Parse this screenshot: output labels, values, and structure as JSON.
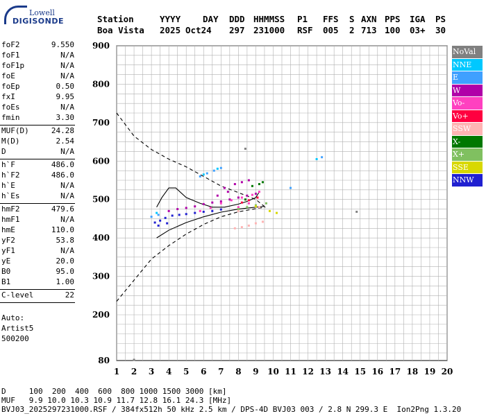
{
  "logo": {
    "line1": "Lowell",
    "line2": "DIGISONDE"
  },
  "header": {
    "labels": [
      "Station",
      "YYYY",
      "DAY",
      "DDD",
      "HHMMSS",
      "P1",
      "FFS",
      "S",
      "AXN",
      "PPS",
      "IGA",
      "PS"
    ],
    "values": [
      "Boa Vista",
      "2025",
      "Oct24",
      "297",
      "231000",
      "RSF",
      "005",
      "2",
      "713",
      "100",
      "03+",
      "30"
    ]
  },
  "params_groups": [
    [
      [
        "foF2",
        "9.550"
      ],
      [
        "foF1",
        "N/A"
      ],
      [
        "foF1p",
        "N/A"
      ],
      [
        "foE",
        "N/A"
      ],
      [
        "foEp",
        "0.50"
      ],
      [
        "fxI",
        "9.95"
      ],
      [
        "foEs",
        "N/A"
      ],
      [
        "fmin",
        "3.30"
      ]
    ],
    [
      [
        "MUF(D)",
        "24.28"
      ],
      [
        "M(D)",
        "2.54"
      ],
      [
        "D",
        "N/A"
      ]
    ],
    [
      [
        "h`F",
        "486.0"
      ],
      [
        "h`F2",
        "486.0"
      ],
      [
        "h`E",
        "N/A"
      ],
      [
        "h`Es",
        "N/A"
      ]
    ],
    [
      [
        "hmF2",
        "479.6"
      ],
      [
        "hmF1",
        "N/A"
      ],
      [
        "hmE",
        "110.0"
      ],
      [
        "yF2",
        "53.8"
      ],
      [
        "yF1",
        "N/A"
      ],
      [
        "yE",
        "20.0"
      ],
      [
        "B0",
        "95.0"
      ],
      [
        "B1",
        "1.00"
      ]
    ],
    [
      [
        "C-level",
        "22"
      ]
    ]
  ],
  "auto_info": [
    "Auto:",
    "Artist5",
    "500200"
  ],
  "legend": [
    {
      "label": "NoVal",
      "color": "#808080"
    },
    {
      "label": "NNE",
      "color": "#00c8ff"
    },
    {
      "label": "E",
      "color": "#3fa0ff"
    },
    {
      "label": "W",
      "color": "#b000a8"
    },
    {
      "label": "Vo-",
      "color": "#ff40c0"
    },
    {
      "label": "Vo+",
      "color": "#ff0040"
    },
    {
      "label": "SSW",
      "color": "#ffb4b4"
    },
    {
      "label": "X-",
      "color": "#007800"
    },
    {
      "label": "X+",
      "color": "#80c060"
    },
    {
      "label": "SSE",
      "color": "#d8d800"
    },
    {
      "label": "NNW",
      "color": "#2020d0"
    }
  ],
  "footer": {
    "d_row": "D     100  200  400  600  800 1000 1500 3000 [km]",
    "muf_row": "MUF   9.9 10.0 10.3 10.9 11.7 12.8 16.1 24.3 [MHz]",
    "file_row": "BVJ03_2025297231000.RSF / 384fx512h 50 kHz 2.5 km / DPS-4D BVJ03 003 / 2.8 N 299.3 E  Ion2Png 1.3.20"
  },
  "chart_data": {
    "type": "scatter",
    "title": "",
    "xlabel": "",
    "ylabel": "",
    "xlim": [
      1,
      20
    ],
    "ylim": [
      80,
      900
    ],
    "xticks": [
      1,
      2,
      3,
      4,
      5,
      6,
      7,
      8,
      9,
      10,
      11,
      12,
      13,
      14,
      15,
      16,
      17,
      18,
      19,
      20
    ],
    "yticks": [
      80,
      200,
      300,
      400,
      500,
      600,
      700,
      800,
      900
    ],
    "grid": true,
    "series": [
      {
        "color": "#2020d0",
        "points": [
          [
            3.2,
            440
          ],
          [
            3.5,
            445
          ],
          [
            3.8,
            452
          ],
          [
            4.2,
            458
          ],
          [
            4.6,
            460
          ],
          [
            5.0,
            462
          ],
          [
            5.5,
            465
          ],
          [
            6.0,
            468
          ],
          [
            6.5,
            470
          ],
          [
            7.0,
            474
          ],
          [
            3.4,
            432
          ],
          [
            3.9,
            438
          ]
        ]
      },
      {
        "color": "#b000a8",
        "points": [
          [
            4.0,
            470
          ],
          [
            4.5,
            475
          ],
          [
            5.0,
            478
          ],
          [
            5.5,
            482
          ],
          [
            6.0,
            488
          ],
          [
            6.5,
            492
          ],
          [
            7.0,
            495
          ],
          [
            7.5,
            500
          ],
          [
            8.0,
            505
          ],
          [
            8.5,
            510
          ],
          [
            9.0,
            515
          ],
          [
            7.2,
            530
          ],
          [
            7.8,
            540
          ],
          [
            8.2,
            545
          ],
          [
            8.6,
            550
          ],
          [
            6.8,
            510
          ],
          [
            7.4,
            520
          ]
        ]
      },
      {
        "color": "#ff40c0",
        "points": [
          [
            5.8,
            470
          ],
          [
            6.4,
            478
          ],
          [
            7.0,
            490
          ],
          [
            7.6,
            498
          ],
          [
            8.2,
            505
          ],
          [
            8.8,
            512
          ],
          [
            9.2,
            520
          ],
          [
            8.0,
            480
          ],
          [
            8.6,
            490
          ]
        ]
      },
      {
        "color": "#3fa0ff",
        "points": [
          [
            3.0,
            455
          ],
          [
            3.4,
            460
          ],
          [
            5.8,
            560
          ],
          [
            6.2,
            568
          ],
          [
            6.6,
            575
          ],
          [
            7.0,
            582
          ],
          [
            11.0,
            530
          ],
          [
            12.8,
            610
          ]
        ]
      },
      {
        "color": "#00c8ff",
        "points": [
          [
            3.3,
            465
          ],
          [
            6.0,
            565
          ],
          [
            6.8,
            580
          ],
          [
            12.5,
            605
          ]
        ]
      },
      {
        "color": "#ffb4b4",
        "points": [
          [
            7.8,
            425
          ],
          [
            8.2,
            428
          ],
          [
            8.6,
            432
          ],
          [
            9.0,
            438
          ],
          [
            9.4,
            442
          ],
          [
            8.0,
            470
          ],
          [
            9.2,
            480
          ]
        ]
      },
      {
        "color": "#007800",
        "points": [
          [
            8.8,
            535
          ],
          [
            9.2,
            540
          ],
          [
            9.4,
            545
          ],
          [
            8.4,
            500
          ]
        ]
      },
      {
        "color": "#80c060",
        "points": [
          [
            8.0,
            475
          ],
          [
            8.5,
            480
          ],
          [
            9.0,
            485
          ],
          [
            9.6,
            490
          ]
        ]
      },
      {
        "color": "#d8d800",
        "points": [
          [
            9.0,
            482
          ],
          [
            9.8,
            470
          ],
          [
            10.2,
            465
          ]
        ]
      },
      {
        "color": "#ff0040",
        "points": [
          [
            8.2,
            492
          ],
          [
            8.6,
            498
          ],
          [
            9.1,
            505
          ]
        ]
      },
      {
        "color": "#808080",
        "points": [
          [
            2.0,
            82
          ],
          [
            8.4,
            632
          ],
          [
            14.8,
            468
          ]
        ]
      }
    ],
    "profile_curve": [
      [
        3.3,
        400
      ],
      [
        3.8,
        420
      ],
      [
        4.5,
        440
      ],
      [
        5.5,
        455
      ],
      [
        6.5,
        465
      ],
      [
        7.5,
        472
      ],
      [
        8.5,
        477
      ],
      [
        9.3,
        480
      ],
      [
        9.55,
        479.6
      ]
    ],
    "trace_curve": [
      [
        3.3,
        480
      ],
      [
        3.6,
        505
      ],
      [
        4.0,
        530
      ],
      [
        4.4,
        530
      ],
      [
        5.0,
        505
      ],
      [
        5.8,
        490
      ],
      [
        6.5,
        480
      ],
      [
        7.2,
        480
      ],
      [
        8.0,
        488
      ],
      [
        8.5,
        495
      ],
      [
        9.0,
        505
      ],
      [
        9.2,
        520
      ]
    ],
    "lower_curve": [
      [
        3.3,
        400
      ],
      [
        4.0,
        420
      ],
      [
        5.0,
        440
      ],
      [
        6.0,
        455
      ],
      [
        7.0,
        467
      ],
      [
        8.0,
        475
      ],
      [
        9.0,
        480
      ],
      [
        9.5,
        482
      ]
    ],
    "dashed_upper": [
      [
        1.0,
        725
      ],
      [
        2.0,
        665
      ],
      [
        3.0,
        630
      ],
      [
        4.0,
        605
      ],
      [
        5.0,
        585
      ],
      [
        6.0,
        560
      ],
      [
        7.0,
        535
      ],
      [
        8.0,
        518
      ],
      [
        9.0,
        500
      ],
      [
        9.55,
        480
      ]
    ],
    "dashed_lower": [
      [
        1.0,
        235
      ],
      [
        2.0,
        290
      ],
      [
        3.0,
        345
      ],
      [
        4.0,
        380
      ],
      [
        5.0,
        410
      ],
      [
        6.0,
        435
      ],
      [
        7.0,
        455
      ],
      [
        8.0,
        468
      ],
      [
        9.0,
        476
      ],
      [
        9.55,
        480
      ]
    ]
  }
}
